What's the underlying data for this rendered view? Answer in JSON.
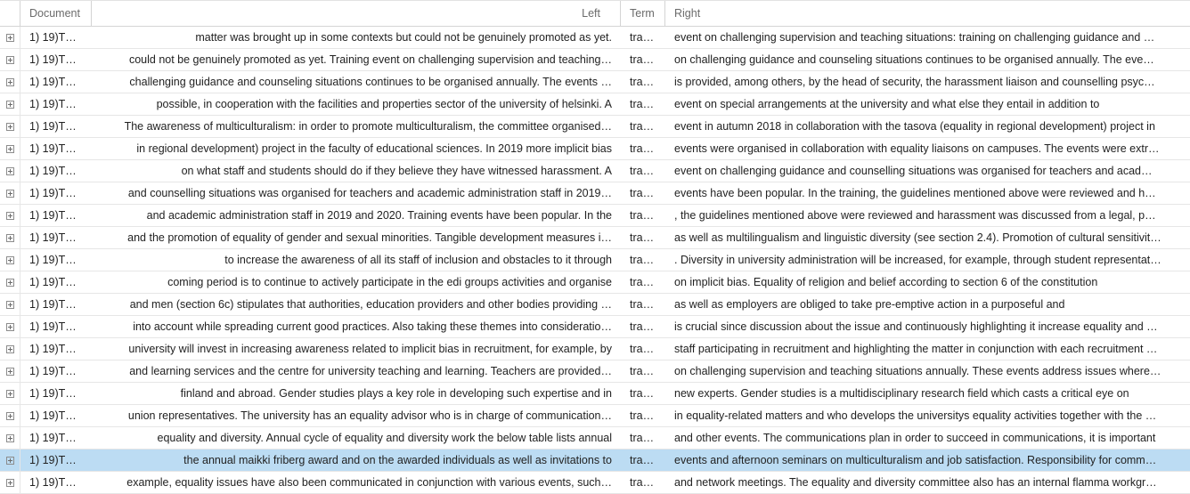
{
  "columns": {
    "document": "Document",
    "left": "Left",
    "term": "Term",
    "right": "Right"
  },
  "selected_row": 19,
  "rows": [
    {
      "doc": "1) 19)T…",
      "left": "matter was brought up in some contexts but could not be genuinely promoted as yet.",
      "term": "tra…",
      "right": "event on challenging supervision and teaching situations: training on challenging guidance and …"
    },
    {
      "doc": "1) 19)T…",
      "left": "could not be genuinely promoted as yet. Training event on challenging supervision and teaching…",
      "term": "tra…",
      "right": "on challenging guidance and counseling situations continues to be organised annually. The eve…"
    },
    {
      "doc": "1) 19)T…",
      "left": "challenging guidance and counseling situations continues to be organised annually. The events …",
      "term": "tra…",
      "right": "is provided, among others, by the head of security, the harassment liaison and counselling psyc…"
    },
    {
      "doc": "1) 19)T…",
      "left": "possible, in cooperation with the facilities and properties sector of the university of helsinki. A",
      "term": "tra…",
      "right": "event on special arrangements at the university and what else they entail in addition to"
    },
    {
      "doc": "1) 19)T…",
      "left": "The awareness of multiculturalism: in order to promote multiculturalism, the committee organised…",
      "term": "tra…",
      "right": "event in autumn 2018 in collaboration with the tasova (equality in regional development) project in"
    },
    {
      "doc": "1) 19)T…",
      "left": "in regional development) project in the faculty of educational sciences. In 2019 more implicit bias",
      "term": "tra…",
      "right": "events were organised in collaboration with equality liaisons on campuses. The events were extr…"
    },
    {
      "doc": "1) 19)T…",
      "left": "on what staff and students should do if they believe they have witnessed harassment. A",
      "term": "tra…",
      "right": "event on challenging guidance and counselling situations was organised for teachers and acad…"
    },
    {
      "doc": "1) 19)T…",
      "left": "and counselling situations was organised for teachers and academic administration staff in 2019…",
      "term": "tra…",
      "right": "events have been popular. In the training, the guidelines mentioned above were reviewed and h…"
    },
    {
      "doc": "1) 19)T…",
      "left": "and academic administration staff in 2019 and 2020. Training events have been popular. In the",
      "term": "tra…",
      "right": ", the guidelines mentioned above were reviewed and harassment was discussed from a legal, p…"
    },
    {
      "doc": "1) 19)T…",
      "left": "and the promotion of equality of gender and sexual minorities. Tangible development measures i…",
      "term": "tra…",
      "right": "as well as multilingualism and linguistic diversity (see section 2.4). Promotion of cultural sensitivit…"
    },
    {
      "doc": "1) 19)T…",
      "left": "to increase the awareness of all its staff of inclusion and obstacles to it through",
      "term": "tra…",
      "right": ". Diversity in university administration will be increased, for example, through student representat…"
    },
    {
      "doc": "1) 19)T…",
      "left": "coming period is to continue to actively participate in the edi groups activities and organise",
      "term": "tra…",
      "right": "on implicit bias. Equality of religion and belief according to section 6 of the constitution"
    },
    {
      "doc": "1) 19)T…",
      "left": "and men (section 6c) stipulates that authorities, education providers and other bodies providing …",
      "term": "tra…",
      "right": "as well as employers are obliged to take pre-emptive action in a purposeful and"
    },
    {
      "doc": "1) 19)T…",
      "left": "into account while spreading current good practices. Also taking these themes into consideratio…",
      "term": "tra…",
      "right": "is crucial since discussion about the issue and continuously highlighting it increase equality and …"
    },
    {
      "doc": "1) 19)T…",
      "left": "university will invest in increasing awareness related to implicit bias in recruitment, for example, by",
      "term": "tra…",
      "right": "staff participating in recruitment and highlighting the matter in conjunction with each recruitment …"
    },
    {
      "doc": "1) 19)T…",
      "left": "and learning services and the centre for university teaching and learning. Teachers are provided…",
      "term": "tra…",
      "right": "on challenging supervision and teaching situations annually. These events address issues where…"
    },
    {
      "doc": "1) 19)T…",
      "left": "finland and abroad. Gender studies plays a key role in developing such expertise and in",
      "term": "tra…",
      "right": "new experts. Gender studies is a multidisciplinary research field which casts a critical eye on"
    },
    {
      "doc": "1) 19)T…",
      "left": "union representatives. The university has an equality advisor who is in charge of communication…",
      "term": "tra…",
      "right": "in equality-related matters and who develops the universitys equality activities together with the …"
    },
    {
      "doc": "1) 19)T…",
      "left": "equality and diversity. Annual cycle of equality and diversity work the below table lists annual",
      "term": "tra…",
      "right": "and other events. The communications plan in order to succeed in communications, it is important"
    },
    {
      "doc": "1) 19)T…",
      "left": "the annual maikki friberg award and on the awarded individuals as well as invitations to",
      "term": "tra…",
      "right": "events and afternoon seminars on multiculturalism and job satisfaction. Responsibility for comm…"
    },
    {
      "doc": "1) 19)T…",
      "left": "example, equality issues have also been communicated in conjunction with various events, such…",
      "term": "tra…",
      "right": "and network meetings. The equality and diversity committee also has an internal flamma workgr…"
    }
  ]
}
